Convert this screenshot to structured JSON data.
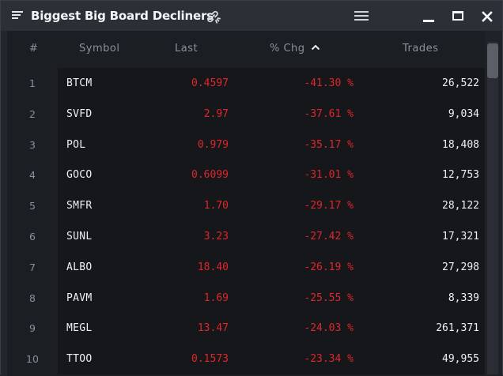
{
  "window": {
    "title": "Biggest Big Board Decliners"
  },
  "icons": {
    "menu": "menu-lines-icon",
    "link": "link-icon",
    "options": "hamburger-icon",
    "minimize": "minimize-icon",
    "maximize": "maximize-icon",
    "close": "close-icon",
    "sort": "chevron-up-icon"
  },
  "colors": {
    "negative": "#e0262a",
    "text": "#eef0f3",
    "muted": "#8b9099"
  },
  "table": {
    "headers": {
      "num": "#",
      "symbol": "Symbol",
      "last": "Last",
      "chg": "% Chg",
      "trades": "Trades"
    },
    "sort_column": "chg",
    "sort_direction": "ascending",
    "rows": [
      {
        "num": "1",
        "symbol": "BTCM",
        "last": "0.4597",
        "chg": "-41.30 %",
        "trades": "26,522"
      },
      {
        "num": "2",
        "symbol": "SVFD",
        "last": "2.97",
        "chg": "-37.61 %",
        "trades": "9,034"
      },
      {
        "num": "3",
        "symbol": "POL",
        "last": "0.979",
        "chg": "-35.17 %",
        "trades": "18,408"
      },
      {
        "num": "4",
        "symbol": "GOCO",
        "last": "0.6099",
        "chg": "-31.01 %",
        "trades": "12,753"
      },
      {
        "num": "5",
        "symbol": "SMFR",
        "last": "1.70",
        "chg": "-29.17 %",
        "trades": "28,122"
      },
      {
        "num": "6",
        "symbol": "SUNL",
        "last": "3.23",
        "chg": "-27.42 %",
        "trades": "17,321"
      },
      {
        "num": "7",
        "symbol": "ALBO",
        "last": "18.40",
        "chg": "-26.19 %",
        "trades": "27,298"
      },
      {
        "num": "8",
        "symbol": "PAVM",
        "last": "1.69",
        "chg": "-25.55 %",
        "trades": "8,339"
      },
      {
        "num": "9",
        "symbol": "MEGL",
        "last": "13.47",
        "chg": "-24.03 %",
        "trades": "261,371"
      },
      {
        "num": "10",
        "symbol": "TTOO",
        "last": "0.1573",
        "chg": "-23.34 %",
        "trades": "49,955"
      }
    ]
  }
}
